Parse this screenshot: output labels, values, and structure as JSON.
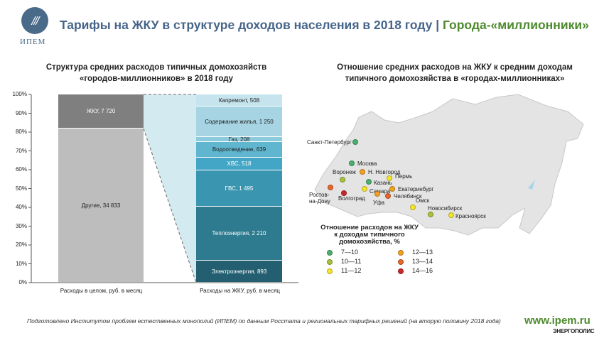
{
  "header": {
    "logo_text": "ИПЕМ",
    "title_main": "Тарифы на ЖКУ в структуре доходов населения в 2018 году | ",
    "title_accent": "Города-«миллионники»"
  },
  "left_panel": {
    "title_line1": "Структура средних расходов типичных домохозяйств",
    "title_line2": "«городов-миллионников» в 2018 году"
  },
  "right_panel": {
    "title_line1": "Отношение средних расходов на ЖКУ к средним доходам",
    "title_line2": "типичного домохозяйства в «городах-миллионниках»"
  },
  "chart_data": {
    "type": "bar",
    "subtype": "bar-of-bar (100% stacked)",
    "yticks": [
      "0%",
      "10%",
      "20%",
      "30%",
      "40%",
      "50%",
      "60%",
      "70%",
      "80%",
      "90%",
      "100%"
    ],
    "ylim": [
      0,
      100
    ],
    "categories": [
      "Расходы в целом, руб. в месяц",
      "Расходы на ЖКУ, руб. в месяц"
    ],
    "total_bar": [
      {
        "label": "Другие, 34 833",
        "value": 34833,
        "color": "#bdbdbd"
      },
      {
        "label": "ЖКУ, 7 720",
        "value": 7720,
        "color": "#7f7f7f"
      }
    ],
    "zhku_bar": [
      {
        "label": "Электроэнергия, 893",
        "value": 893,
        "color": "#235f70"
      },
      {
        "label": "Теплоэнергия, 2 210",
        "value": 2210,
        "color": "#2e7b8f"
      },
      {
        "label": "ГВС, 1 495",
        "value": 1495,
        "color": "#3a95b0"
      },
      {
        "label": "ХВС, 518",
        "value": 518,
        "color": "#44a6c6"
      },
      {
        "label": "Водоотведение, 639",
        "value": 639,
        "color": "#60b6cf"
      },
      {
        "label": "Газ, 208",
        "value": 208,
        "color": "#8ccbdc"
      },
      {
        "label": "Содержание жилья, 1 250",
        "value": 1250,
        "color": "#a6d4e2"
      },
      {
        "label": "Капремонт, 508",
        "value": 508,
        "color": "#c6e4ed"
      }
    ]
  },
  "map": {
    "legend_title": [
      "Отношение расходов на ЖКУ",
      "к доходам типичного",
      "домохозяйства, %"
    ],
    "legend": [
      {
        "range": "7—10",
        "color": "#4caf6e"
      },
      {
        "range": "10—11",
        "color": "#a6c23a"
      },
      {
        "range": "11—12",
        "color": "#f5e52a"
      },
      {
        "range": "12—13",
        "color": "#f2a122"
      },
      {
        "range": "13—14",
        "color": "#e8662a"
      },
      {
        "range": "14—16",
        "color": "#c8282a"
      }
    ],
    "cities": [
      {
        "name": "Санкт-Петербург",
        "band": "7—10"
      },
      {
        "name": "Москва",
        "band": "7—10"
      },
      {
        "name": "Н. Новгород",
        "band": "12—13"
      },
      {
        "name": "Воронеж",
        "band": "10—11"
      },
      {
        "name": "Казань",
        "band": "7—10"
      },
      {
        "name": "Пермь",
        "band": "11—12"
      },
      {
        "name": "Самара",
        "band": "11—12"
      },
      {
        "name": "Екатеринбург",
        "band": "12—13"
      },
      {
        "name": "Ростов-на-Дону",
        "band": "13—14"
      },
      {
        "name": "Волгоград",
        "band": "14—16"
      },
      {
        "name": "Уфа",
        "band": "12—13"
      },
      {
        "name": "Челябинск",
        "band": "13—14"
      },
      {
        "name": "Омск",
        "band": "11—12"
      },
      {
        "name": "Новосибирск",
        "band": "10—11"
      },
      {
        "name": "Красноярск",
        "band": "11—12"
      }
    ]
  },
  "footer": {
    "note": "Подготовлено Институтом проблем естественных монополий (ИПЕМ) по данным Росстата и региональных тарифных решений (на вторую половину 2018 года)",
    "site": "www.ipem.ru",
    "brand": "ЭНЕРГОПОЛИС"
  }
}
